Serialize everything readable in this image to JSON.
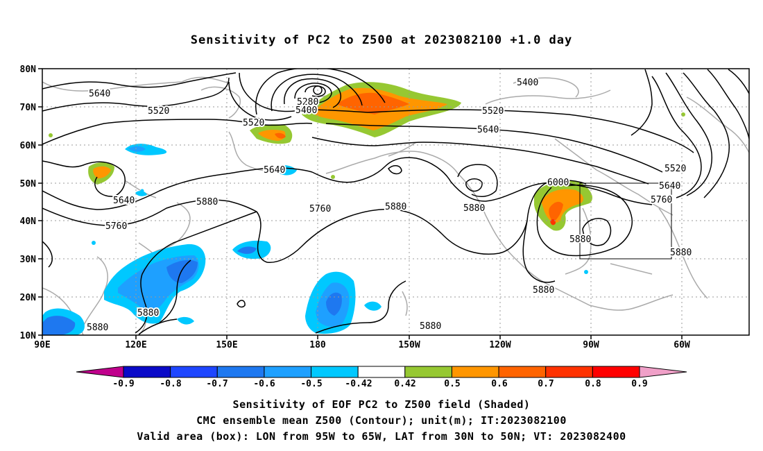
{
  "title": "Sensitivity of PC2 to Z500 at 2023082100 +1.0 day",
  "y_axis_labels": [
    "80N",
    "70N",
    "60N",
    "50N",
    "40N",
    "30N",
    "20N",
    "10N"
  ],
  "x_axis_labels": [
    "90E",
    "120E",
    "150E",
    "180",
    "150W",
    "120W",
    "90W",
    "60W"
  ],
  "contour_labels": [
    "5640",
    "5520",
    "5520",
    "5640",
    "5640",
    "5760",
    "5280",
    "5400",
    "5400",
    "5520",
    "5640",
    "5520",
    "5640",
    "5760",
    "5880",
    "5760",
    "5880",
    "5880",
    "6000",
    "5880",
    "5880",
    "5880",
    "5880",
    "5880"
  ],
  "colorbar": {
    "labels": [
      "-0.9",
      "-0.8",
      "-0.7",
      "-0.6",
      "-0.5",
      "-0.42",
      "0.42",
      "0.5",
      "0.6",
      "0.7",
      "0.8",
      "0.9"
    ],
    "colors": [
      "#c0008c",
      "#0a0ac8",
      "#1e46ff",
      "#1e78f0",
      "#1ea0ff",
      "#00c8ff",
      "#ffffff",
      "#96c832",
      "#ff9600",
      "#ff6400",
      "#ff3200",
      "#ff0000",
      "#f0a0c8"
    ]
  },
  "footer": {
    "line1": "Sensitivity of EOF PC2 to Z500 field (Shaded)",
    "line2": "CMC ensemble mean Z500 (Contour); unit(m); IT:2023082100",
    "line3": "Valid area (box): LON from 95W to 65W, LAT from 30N to 50N; VT: 2023082400"
  }
}
